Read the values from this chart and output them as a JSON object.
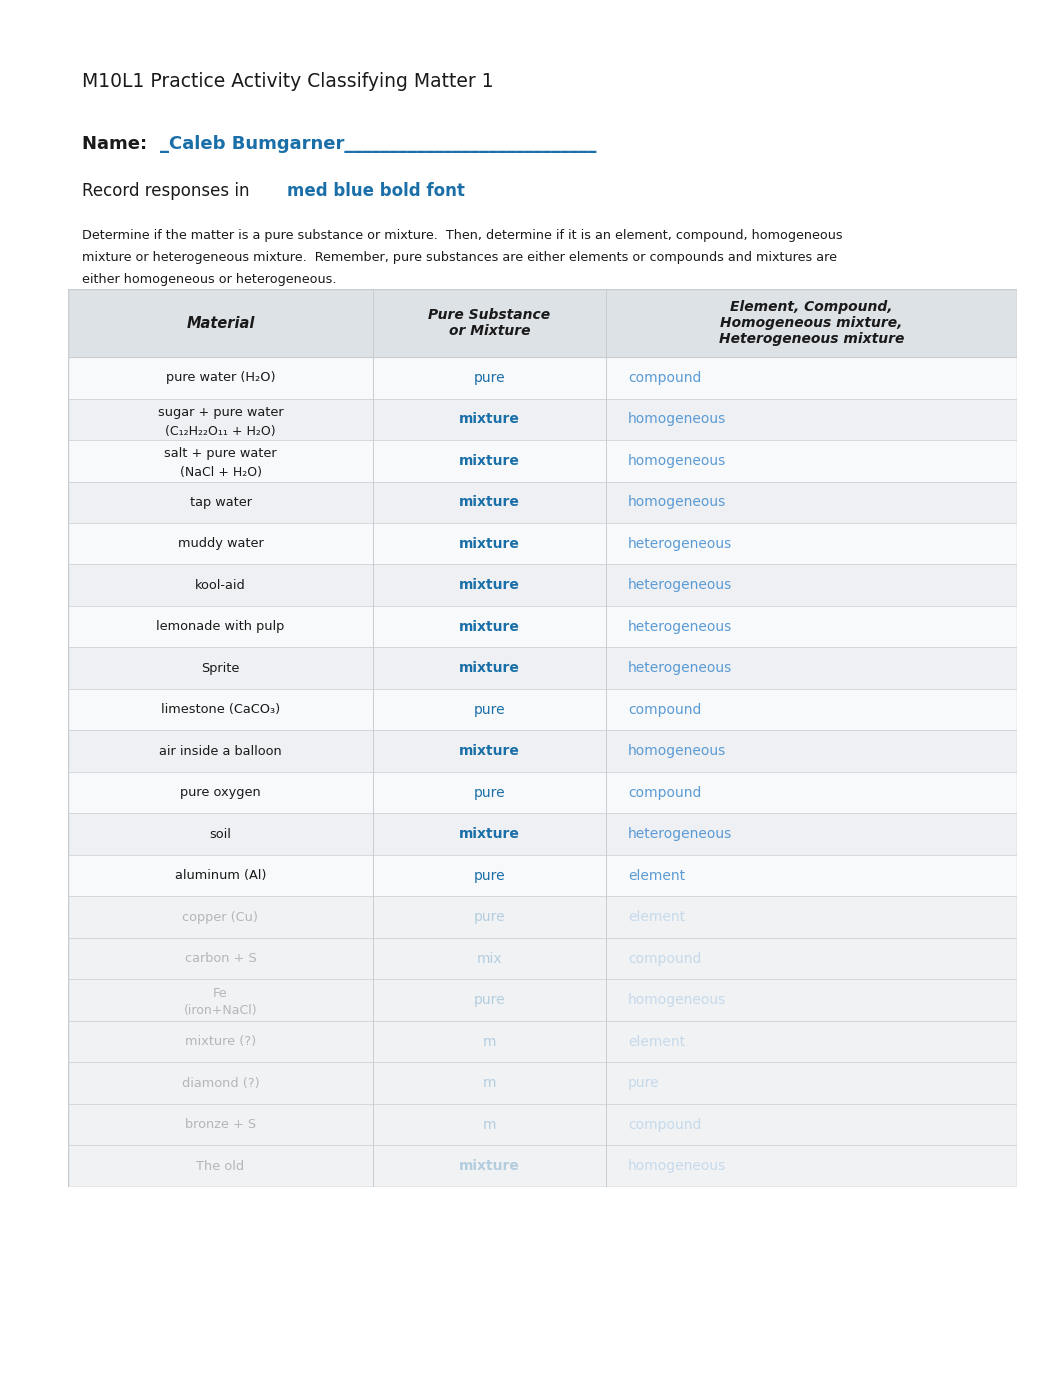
{
  "title": "M10L1 Practice Activity Classifying Matter 1",
  "name_label": "Name:  ",
  "name_value": "_Caleb Bumgarner____________________________",
  "record_text_black": "Record responses in ",
  "record_text_blue": "med blue bold font",
  "body_text_line1": "Determine if the matter is a pure substance or mixture.  Then, determine if it is an element, compound, homogeneous",
  "body_text_line2": "mixture or heterogeneous mixture.  Remember, pure substances are either elements or compounds and mixtures are",
  "body_text_line3": "either homogeneous or heterogeneous.",
  "col_headers": [
    "Material",
    "Pure Substance\nor Mixture",
    "Element, Compound,\nHomogeneous mixture,\nHeterogeneous mixture"
  ],
  "rows": [
    {
      "material": "pure water (H₂O)",
      "material_sub": null,
      "pure": "pure",
      "classification": "compound",
      "pure_bold": true,
      "class_bold": false,
      "blurred": false
    },
    {
      "material": "sugar + pure water",
      "material_sub": "(C₁₂H₂₂O₁₁ + H₂O)",
      "pure": "mixture",
      "classification": "homogeneous",
      "pure_bold": true,
      "class_bold": false,
      "blurred": false
    },
    {
      "material": "salt + pure water",
      "material_sub": "(NaCl + H₂O)",
      "pure": "mixture",
      "classification": "homogeneous",
      "pure_bold": true,
      "class_bold": false,
      "blurred": false
    },
    {
      "material": "tap water",
      "material_sub": null,
      "pure": "mixture",
      "classification": "homogeneous",
      "pure_bold": true,
      "class_bold": false,
      "blurred": false
    },
    {
      "material": "muddy water",
      "material_sub": null,
      "pure": "mixture",
      "classification": "heterogeneous",
      "pure_bold": true,
      "class_bold": false,
      "blurred": false
    },
    {
      "material": "kool-aid",
      "material_sub": null,
      "pure": "mixture",
      "classification": "heterogeneous",
      "pure_bold": true,
      "class_bold": false,
      "blurred": false
    },
    {
      "material": "lemonade with pulp",
      "material_sub": null,
      "pure": "mixture",
      "classification": "heterogeneous",
      "pure_bold": true,
      "class_bold": false,
      "blurred": false
    },
    {
      "material": "Sprite",
      "material_sub": null,
      "pure": "mixture",
      "classification": "heterogeneous",
      "pure_bold": true,
      "class_bold": false,
      "blurred": false
    },
    {
      "material": "limestone (CaCO₃)",
      "material_sub": null,
      "pure": "pure",
      "classification": "compound",
      "pure_bold": false,
      "class_bold": false,
      "blurred": false
    },
    {
      "material": "air inside a balloon",
      "material_sub": null,
      "pure": "mixture",
      "classification": "homogeneous",
      "pure_bold": true,
      "class_bold": false,
      "blurred": false
    },
    {
      "material": "pure oxygen",
      "material_sub": null,
      "pure": "pure",
      "classification": "compound",
      "pure_bold": false,
      "class_bold": false,
      "blurred": false
    },
    {
      "material": "soil",
      "material_sub": null,
      "pure": "mixture",
      "classification": "heterogeneous",
      "pure_bold": true,
      "class_bold": false,
      "blurred": false
    },
    {
      "material": "aluminum (Al)",
      "material_sub": null,
      "pure": "pure",
      "classification": "element",
      "pure_bold": false,
      "class_bold": false,
      "blurred": false
    },
    {
      "material": "copper (Cu)",
      "material_sub": null,
      "pure": "pure",
      "classification": "element",
      "pure_bold": false,
      "class_bold": false,
      "blurred": true
    },
    {
      "material": "carbon + S",
      "material_sub": null,
      "pure": "mix",
      "classification": "compound",
      "pure_bold": false,
      "class_bold": false,
      "blurred": true
    },
    {
      "material": "Fe\n(iron+NaCl)",
      "material_sub": null,
      "pure": "pure",
      "classification": "homogeneous",
      "pure_bold": false,
      "class_bold": false,
      "blurred": true
    },
    {
      "material": "mixture (?)",
      "material_sub": null,
      "pure": "m",
      "classification": "element",
      "pure_bold": false,
      "class_bold": false,
      "blurred": true
    },
    {
      "material": "diamond (?)",
      "material_sub": null,
      "pure": "m",
      "classification": "pure",
      "pure_bold": false,
      "class_bold": false,
      "blurred": true
    },
    {
      "material": "bronze + S",
      "material_sub": null,
      "pure": "m",
      "classification": "compound",
      "pure_bold": false,
      "class_bold": false,
      "blurred": true
    },
    {
      "material": "The old",
      "material_sub": null,
      "pure": "mixture",
      "classification": "homogeneous",
      "pure_bold": false,
      "class_bold": false,
      "blurred": true
    }
  ],
  "blue_dark": "#1a6fa8",
  "blue_medium": "#5b9bd5",
  "blue_light": "#7ab3d6",
  "black": "#1a1a1a",
  "table_border": "#c8cdd2",
  "row_alt": "#eef0f3",
  "row_white": "#f8f9fa",
  "header_bg": "#dde2e7",
  "page_bg": "#ffffff"
}
